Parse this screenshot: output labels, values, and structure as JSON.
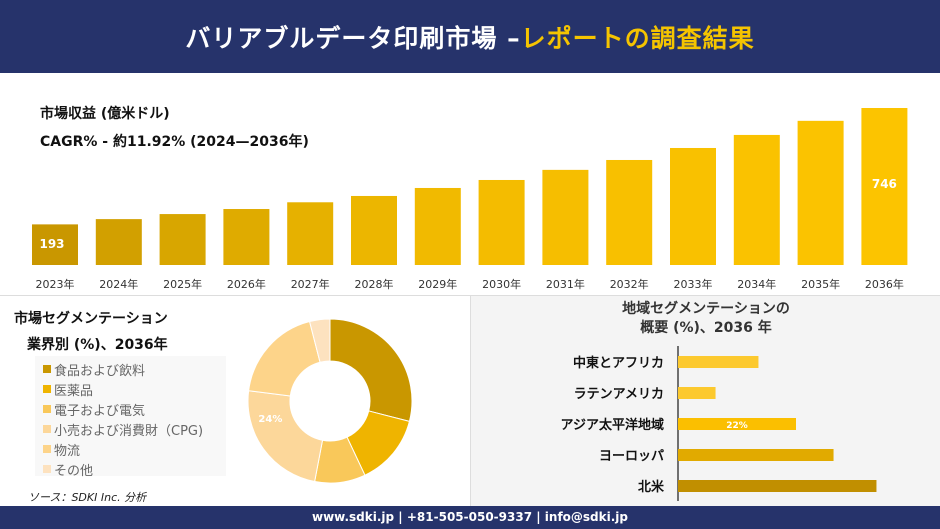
{
  "header": {
    "title_main": "バリアブルデータ印刷市場 –",
    "title_accent": "レポートの調査結果"
  },
  "colors": {
    "navy": "#26336b",
    "accent": "#f5c400"
  },
  "chart_data": [
    {
      "type": "bar",
      "title": "市場収益 (億米ドル)",
      "subtitle": "CAGR% - 約11.92% (2024—2036年)",
      "categories": [
        "2023年",
        "2024年",
        "2025年",
        "2026年",
        "2027年",
        "2028年",
        "2029年",
        "2030年",
        "2031年",
        "2032年",
        "2033年",
        "2034年",
        "2035年",
        "2036年"
      ],
      "values": [
        193,
        218,
        242,
        266,
        298,
        328,
        366,
        404,
        452,
        499,
        556,
        618,
        685,
        746
      ],
      "data_labels": {
        "0": "193",
        "13": "746"
      }
    },
    {
      "type": "pie",
      "title": "市場セグメンテーション",
      "subtitle": "業界別 (%)、2036年",
      "labels": [
        "食品および飲料",
        "医薬品",
        "電子および電気",
        "小売および消費財（CPG)",
        "物流",
        "その他"
      ],
      "values": [
        29,
        14,
        10,
        24,
        19,
        4
      ],
      "colors": [
        "#c99700",
        "#efb400",
        "#f9c85a",
        "#fcd79a",
        "#fdd48a",
        "#fde2bf"
      ],
      "data_labels": {
        "3": "24%"
      }
    },
    {
      "type": "bar",
      "orientation": "horizontal",
      "title": "地域セグメンテーションの",
      "subtitle": "概要 (%)、2036 年",
      "categories": [
        "中東とアフリカ",
        "ラテンアメリカ",
        "アジア太平洋地域",
        "ヨーロッパ",
        "北米"
      ],
      "values": [
        15,
        7,
        22,
        29,
        37
      ],
      "colors": [
        "#fcc92e",
        "#fcc92e",
        "#fbbf00",
        "#e1aa00",
        "#c18f00"
      ],
      "data_labels": {
        "2": "22%"
      }
    }
  ],
  "source": "ソース：SDKI Inc. 分析",
  "footer": "www.sdki.jp | +81-505-050-9337 | info@sdki.jp"
}
